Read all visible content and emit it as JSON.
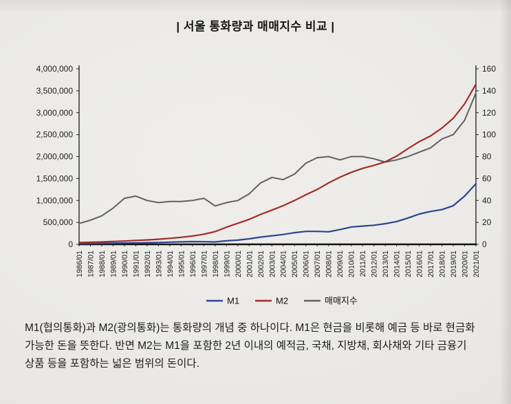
{
  "page": {
    "title": "|  서울 통화량과 매매지수 비교  |",
    "body_text": {
      "line1": "M1(협의통화)과 M2(광의통화)는 통화량의 개념 중 하나이다. M1은 현금을 비롯해 예금 등 바로 현금화",
      "line2": "가능한 돈을 뜻한다. 반면 M2는 M1을 포함한 2년 이내의 예적금, 국채, 지방채, 회사채와 기타 금융기",
      "line3": "상품 등을 포함하는 넓은 범위의 돈이다."
    }
  },
  "chart_data": {
    "type": "line",
    "title": "서울 통화량과 매매지수 비교",
    "x": [
      "1986/01",
      "1987/01",
      "1988/01",
      "1989/01",
      "1990/01",
      "1991/01",
      "1992/01",
      "1993/01",
      "1994/01",
      "1995/01",
      "1996/01",
      "1997/01",
      "1998/01",
      "1999/01",
      "2000/01",
      "2001/01",
      "2002/01",
      "2003/01",
      "2004/01",
      "2005/01",
      "2006/01",
      "2007/01",
      "2008/01",
      "2009/01",
      "2010/01",
      "2011/01",
      "2012/01",
      "2013/01",
      "2014/01",
      "2015/01",
      "2016/01",
      "2017/01",
      "2018/01",
      "2019/01",
      "2020/01",
      "2021/01"
    ],
    "series": [
      {
        "id": "m1",
        "name": "M1",
        "axis": "left",
        "color": "#2b4590",
        "values": [
          15000,
          18000,
          22000,
          26000,
          30000,
          34000,
          37000,
          43000,
          50000,
          56000,
          62000,
          60000,
          55000,
          80000,
          95000,
          125000,
          165000,
          195000,
          225000,
          265000,
          295000,
          295000,
          285000,
          335000,
          395000,
          415000,
          435000,
          470000,
          520000,
          600000,
          690000,
          750000,
          790000,
          880000,
          1100000,
          1380000
        ]
      },
      {
        "id": "m2",
        "name": "M2",
        "axis": "left",
        "color": "#a32b26",
        "values": [
          40000,
          47000,
          55000,
          65000,
          76000,
          89000,
          101000,
          116000,
          136000,
          160000,
          190000,
          230000,
          290000,
          390000,
          480000,
          570000,
          680000,
          780000,
          880000,
          1000000,
          1130000,
          1250000,
          1400000,
          1530000,
          1640000,
          1730000,
          1800000,
          1880000,
          2010000,
          2180000,
          2340000,
          2470000,
          2650000,
          2870000,
          3200000,
          3650000
        ]
      },
      {
        "id": "sales-index",
        "name": "매매지수",
        "axis": "right",
        "color": "#5f5f5f",
        "values": [
          19,
          22,
          26,
          33,
          42,
          44,
          40,
          38,
          39,
          39,
          40,
          42,
          35,
          38,
          40,
          46,
          56,
          61,
          59,
          64,
          74,
          79,
          80,
          77,
          80,
          80,
          78,
          75,
          77,
          80,
          84,
          88,
          96,
          100,
          113,
          138
        ]
      }
    ],
    "left_axis": {
      "min": 0,
      "max": 4000000,
      "ticks": [
        "0",
        "500,000",
        "1,000,000",
        "1,500,000",
        "2,000,000",
        "2,500,000",
        "3,000,000",
        "3,500,000",
        "4,000,000"
      ]
    },
    "right_axis": {
      "min": 0,
      "max": 160,
      "ticks": [
        "0",
        "20",
        "40",
        "60",
        "80",
        "100",
        "120",
        "140",
        "160"
      ]
    },
    "legend": [
      "M1",
      "M2",
      "매매지수"
    ],
    "legend_position": "bottom",
    "grid": false
  }
}
